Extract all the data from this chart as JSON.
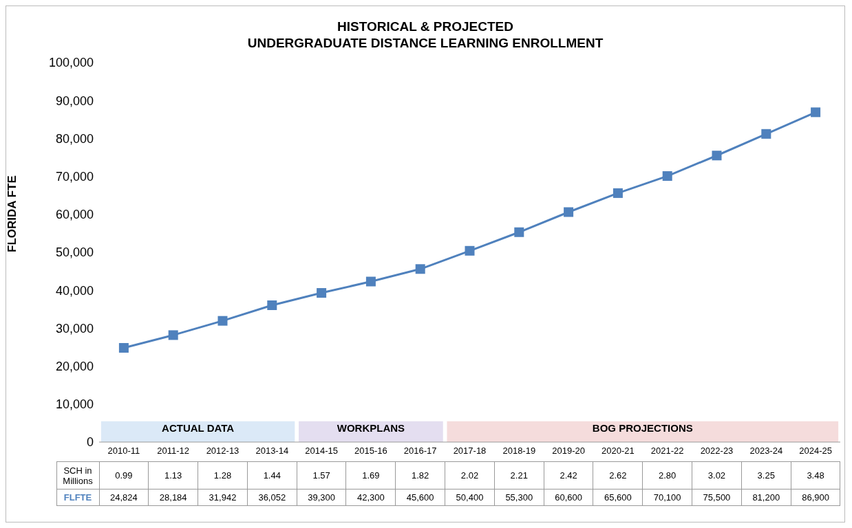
{
  "chart_data": {
    "type": "line",
    "title": "HISTORICAL & PROJECTED\nUNDERGRADUATE DISTANCE LEARNING ENROLLMENT",
    "ylabel": "FLORIDA FTE",
    "categories": [
      "2010-11",
      "2011-12",
      "2012-13",
      "2013-14",
      "2014-15",
      "2015-16",
      "2016-17",
      "2017-18",
      "2018-19",
      "2019-20",
      "2020-21",
      "2021-22",
      "2022-23",
      "2023-24",
      "2024-25"
    ],
    "series": [
      {
        "name": "FLFTE",
        "color": "#4f81bd",
        "values": [
          24824,
          28184,
          31942,
          36052,
          39300,
          42300,
          45600,
          50400,
          55300,
          60600,
          65600,
          70100,
          75500,
          81200,
          86900
        ],
        "value_labels": [
          "24,824",
          "28,184",
          "31,942",
          "36,052",
          "39,300",
          "42,300",
          "45,600",
          "50,400",
          "55,300",
          "60,600",
          "65,600",
          "70,100",
          "75,500",
          "81,200",
          "86,900"
        ]
      }
    ],
    "ylim": [
      0,
      100000
    ],
    "yticks": [
      0,
      {
        "value": 10000,
        "label": "10,000"
      },
      {
        "value": 20000,
        "label": "20,000"
      },
      {
        "value": 30000,
        "label": "30,000"
      },
      {
        "value": 40000,
        "label": "40,000"
      },
      {
        "value": 50000,
        "label": "50,000"
      },
      {
        "value": 60000,
        "label": "60,000"
      },
      {
        "value": 70000,
        "label": "70,000"
      },
      {
        "value": 80000,
        "label": "80,000"
      },
      {
        "value": 90000,
        "label": "90,000"
      },
      {
        "value": 100000,
        "label": "100,000"
      }
    ],
    "marker": "square",
    "line_style": "solid",
    "bands": [
      {
        "axis": "x",
        "from": "2010-11",
        "to": "2013-14",
        "label": "ACTUAL DATA",
        "color": "#dbe9f7"
      },
      {
        "axis": "x",
        "from": "2014-15",
        "to": "2016-17",
        "label": "WORKPLANS",
        "color": "#e4def0"
      },
      {
        "axis": "x",
        "from": "2017-18",
        "to": "2024-25",
        "label": "BOG PROJECTIONS",
        "color": "#f5dcdc"
      }
    ],
    "annotations": [
      "SCH in Millions",
      "0.99",
      "1.13",
      "1.28",
      "1.44",
      "1.57",
      "1.69",
      "1.82",
      "2.02",
      "2.21",
      "2.42",
      "2.62",
      "2.80",
      "3.02",
      "3.25",
      "3.48"
    ]
  }
}
